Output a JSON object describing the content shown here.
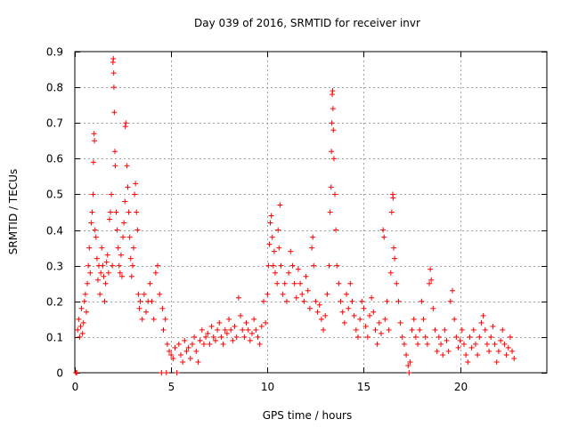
{
  "chart_data": {
    "type": "scatter",
    "title": "Day 039 of 2016, SRMTID for receiver invr",
    "xlabel": "GPS time / hours",
    "ylabel": "SRMTID / TECUs",
    "xlim": [
      0,
      24.5
    ],
    "ylim": [
      0,
      0.9
    ],
    "xticks": [
      0,
      5,
      10,
      15,
      20
    ],
    "yticks": [
      0,
      0.1,
      0.2,
      0.3,
      0.4,
      0.5,
      0.6,
      0.7,
      0.8,
      0.9
    ],
    "grid": true,
    "marker": "+",
    "color": "#ff0000",
    "series": [
      {
        "name": "SRMTID",
        "points": [
          [
            0.05,
            0.0
          ],
          [
            0.1,
            0.0
          ],
          [
            0.15,
            0.12
          ],
          [
            0.2,
            0.15
          ],
          [
            0.25,
            0.1
          ],
          [
            0.3,
            0.13
          ],
          [
            0.35,
            0.18
          ],
          [
            0.4,
            0.11
          ],
          [
            0.45,
            0.14
          ],
          [
            0.5,
            0.2
          ],
          [
            0.55,
            0.22
          ],
          [
            0.6,
            0.17
          ],
          [
            0.65,
            0.25
          ],
          [
            0.7,
            0.3
          ],
          [
            0.75,
            0.35
          ],
          [
            0.8,
            0.28
          ],
          [
            0.85,
            0.42
          ],
          [
            0.9,
            0.45
          ],
          [
            0.95,
            0.5
          ],
          [
            0.97,
            0.59
          ],
          [
            1.0,
            0.67
          ],
          [
            1.02,
            0.65
          ],
          [
            1.05,
            0.4
          ],
          [
            1.1,
            0.38
          ],
          [
            1.15,
            0.32
          ],
          [
            1.2,
            0.26
          ],
          [
            1.25,
            0.3
          ],
          [
            1.3,
            0.22
          ],
          [
            1.35,
            0.28
          ],
          [
            1.4,
            0.35
          ],
          [
            1.45,
            0.3
          ],
          [
            1.5,
            0.27
          ],
          [
            1.55,
            0.2
          ],
          [
            1.6,
            0.25
          ],
          [
            1.65,
            0.31
          ],
          [
            1.7,
            0.33
          ],
          [
            1.75,
            0.28
          ],
          [
            1.8,
            0.43
          ],
          [
            1.85,
            0.45
          ],
          [
            1.9,
            0.5
          ],
          [
            1.95,
            0.3
          ],
          [
            1.98,
            0.87
          ],
          [
            2.0,
            0.88
          ],
          [
            2.02,
            0.84
          ],
          [
            2.03,
            0.8
          ],
          [
            2.05,
            0.73
          ],
          [
            2.08,
            0.62
          ],
          [
            2.1,
            0.58
          ],
          [
            2.15,
            0.45
          ],
          [
            2.2,
            0.4
          ],
          [
            2.25,
            0.35
          ],
          [
            2.3,
            0.3
          ],
          [
            2.35,
            0.28
          ],
          [
            2.4,
            0.33
          ],
          [
            2.45,
            0.27
          ],
          [
            2.5,
            0.38
          ],
          [
            2.55,
            0.42
          ],
          [
            2.6,
            0.48
          ],
          [
            2.62,
            0.69
          ],
          [
            2.65,
            0.7
          ],
          [
            2.7,
            0.58
          ],
          [
            2.75,
            0.52
          ],
          [
            2.8,
            0.45
          ],
          [
            2.85,
            0.38
          ],
          [
            2.9,
            0.32
          ],
          [
            2.95,
            0.27
          ],
          [
            3.0,
            0.3
          ],
          [
            3.05,
            0.35
          ],
          [
            3.1,
            0.5
          ],
          [
            3.15,
            0.53
          ],
          [
            3.2,
            0.45
          ],
          [
            3.25,
            0.4
          ],
          [
            3.3,
            0.22
          ],
          [
            3.35,
            0.18
          ],
          [
            3.4,
            0.2
          ],
          [
            3.5,
            0.15
          ],
          [
            3.6,
            0.22
          ],
          [
            3.7,
            0.17
          ],
          [
            3.8,
            0.2
          ],
          [
            3.9,
            0.25
          ],
          [
            4.0,
            0.2
          ],
          [
            4.1,
            0.15
          ],
          [
            4.2,
            0.28
          ],
          [
            4.3,
            0.3
          ],
          [
            4.4,
            0.22
          ],
          [
            4.5,
            0.0
          ],
          [
            4.55,
            0.18
          ],
          [
            4.6,
            0.12
          ],
          [
            4.7,
            0.15
          ],
          [
            4.75,
            0.0
          ],
          [
            4.8,
            0.08
          ],
          [
            4.9,
            0.06
          ],
          [
            5.0,
            0.05
          ],
          [
            5.1,
            0.04
          ],
          [
            5.2,
            0.07
          ],
          [
            5.3,
            0.0
          ],
          [
            5.4,
            0.08
          ],
          [
            5.5,
            0.05
          ],
          [
            5.6,
            0.03
          ],
          [
            5.7,
            0.09
          ],
          [
            5.8,
            0.06
          ],
          [
            5.9,
            0.07
          ],
          [
            6.0,
            0.04
          ],
          [
            6.1,
            0.08
          ],
          [
            6.2,
            0.1
          ],
          [
            6.3,
            0.06
          ],
          [
            6.4,
            0.03
          ],
          [
            6.5,
            0.09
          ],
          [
            6.6,
            0.12
          ],
          [
            6.7,
            0.08
          ],
          [
            6.8,
            0.1
          ],
          [
            6.9,
            0.11
          ],
          [
            7.0,
            0.08
          ],
          [
            7.1,
            0.13
          ],
          [
            7.2,
            0.1
          ],
          [
            7.3,
            0.09
          ],
          [
            7.4,
            0.12
          ],
          [
            7.5,
            0.14
          ],
          [
            7.6,
            0.1
          ],
          [
            7.7,
            0.08
          ],
          [
            7.8,
            0.12
          ],
          [
            7.9,
            0.11
          ],
          [
            8.0,
            0.15
          ],
          [
            8.1,
            0.12
          ],
          [
            8.2,
            0.09
          ],
          [
            8.3,
            0.13
          ],
          [
            8.4,
            0.1
          ],
          [
            8.5,
            0.21
          ],
          [
            8.6,
            0.16
          ],
          [
            8.7,
            0.12
          ],
          [
            8.8,
            0.1
          ],
          [
            8.9,
            0.14
          ],
          [
            9.0,
            0.12
          ],
          [
            9.1,
            0.09
          ],
          [
            9.2,
            0.11
          ],
          [
            9.3,
            0.15
          ],
          [
            9.4,
            0.12
          ],
          [
            9.5,
            0.1
          ],
          [
            9.6,
            0.08
          ],
          [
            9.7,
            0.13
          ],
          [
            9.8,
            0.2
          ],
          [
            9.9,
            0.14
          ],
          [
            10.0,
            0.22
          ],
          [
            10.05,
            0.3
          ],
          [
            10.1,
            0.36
          ],
          [
            10.15,
            0.42
          ],
          [
            10.2,
            0.44
          ],
          [
            10.25,
            0.38
          ],
          [
            10.3,
            0.3
          ],
          [
            10.35,
            0.34
          ],
          [
            10.4,
            0.28
          ],
          [
            10.5,
            0.25
          ],
          [
            10.55,
            0.4
          ],
          [
            10.6,
            0.35
          ],
          [
            10.65,
            0.47
          ],
          [
            10.7,
            0.3
          ],
          [
            10.8,
            0.22
          ],
          [
            10.9,
            0.25
          ],
          [
            11.0,
            0.2
          ],
          [
            11.1,
            0.28
          ],
          [
            11.2,
            0.34
          ],
          [
            11.3,
            0.3
          ],
          [
            11.4,
            0.25
          ],
          [
            11.5,
            0.21
          ],
          [
            11.6,
            0.29
          ],
          [
            11.7,
            0.25
          ],
          [
            11.8,
            0.22
          ],
          [
            11.9,
            0.2
          ],
          [
            12.0,
            0.27
          ],
          [
            12.1,
            0.23
          ],
          [
            12.2,
            0.18
          ],
          [
            12.3,
            0.35
          ],
          [
            12.35,
            0.38
          ],
          [
            12.4,
            0.3
          ],
          [
            12.5,
            0.2
          ],
          [
            12.6,
            0.17
          ],
          [
            12.7,
            0.19
          ],
          [
            12.8,
            0.15
          ],
          [
            12.9,
            0.12
          ],
          [
            13.0,
            0.16
          ],
          [
            13.1,
            0.22
          ],
          [
            13.2,
            0.3
          ],
          [
            13.25,
            0.45
          ],
          [
            13.3,
            0.52
          ],
          [
            13.32,
            0.62
          ],
          [
            13.34,
            0.7
          ],
          [
            13.36,
            0.78
          ],
          [
            13.38,
            0.79
          ],
          [
            13.4,
            0.74
          ],
          [
            13.42,
            0.68
          ],
          [
            13.45,
            0.6
          ],
          [
            13.5,
            0.5
          ],
          [
            13.55,
            0.4
          ],
          [
            13.6,
            0.3
          ],
          [
            13.7,
            0.25
          ],
          [
            13.8,
            0.2
          ],
          [
            13.9,
            0.17
          ],
          [
            14.0,
            0.14
          ],
          [
            14.1,
            0.22
          ],
          [
            14.2,
            0.18
          ],
          [
            14.3,
            0.25
          ],
          [
            14.4,
            0.2
          ],
          [
            14.5,
            0.16
          ],
          [
            14.6,
            0.12
          ],
          [
            14.7,
            0.1
          ],
          [
            14.8,
            0.15
          ],
          [
            14.9,
            0.2
          ],
          [
            15.0,
            0.18
          ],
          [
            15.1,
            0.13
          ],
          [
            15.2,
            0.1
          ],
          [
            15.3,
            0.16
          ],
          [
            15.4,
            0.21
          ],
          [
            15.5,
            0.17
          ],
          [
            15.6,
            0.12
          ],
          [
            15.7,
            0.08
          ],
          [
            15.8,
            0.14
          ],
          [
            15.9,
            0.11
          ],
          [
            16.0,
            0.4
          ],
          [
            16.05,
            0.38
          ],
          [
            16.1,
            0.15
          ],
          [
            16.2,
            0.2
          ],
          [
            16.3,
            0.12
          ],
          [
            16.4,
            0.28
          ],
          [
            16.45,
            0.45
          ],
          [
            16.5,
            0.5
          ],
          [
            16.52,
            0.49
          ],
          [
            16.55,
            0.35
          ],
          [
            16.6,
            0.32
          ],
          [
            16.7,
            0.25
          ],
          [
            16.8,
            0.2
          ],
          [
            16.9,
            0.14
          ],
          [
            17.0,
            0.1
          ],
          [
            17.1,
            0.08
          ],
          [
            17.2,
            0.05
          ],
          [
            17.3,
            0.02
          ],
          [
            17.35,
            0.0
          ],
          [
            17.4,
            0.03
          ],
          [
            17.5,
            0.12
          ],
          [
            17.6,
            0.15
          ],
          [
            17.7,
            0.1
          ],
          [
            17.8,
            0.08
          ],
          [
            17.9,
            0.12
          ],
          [
            18.0,
            0.2
          ],
          [
            18.1,
            0.15
          ],
          [
            18.2,
            0.1
          ],
          [
            18.3,
            0.08
          ],
          [
            18.4,
            0.25
          ],
          [
            18.45,
            0.29
          ],
          [
            18.5,
            0.26
          ],
          [
            18.6,
            0.18
          ],
          [
            18.7,
            0.12
          ],
          [
            18.8,
            0.06
          ],
          [
            18.9,
            0.1
          ],
          [
            19.0,
            0.08
          ],
          [
            19.1,
            0.05
          ],
          [
            19.2,
            0.12
          ],
          [
            19.3,
            0.09
          ],
          [
            19.4,
            0.06
          ],
          [
            19.5,
            0.2
          ],
          [
            19.6,
            0.23
          ],
          [
            19.7,
            0.15
          ],
          [
            19.8,
            0.1
          ],
          [
            19.9,
            0.07
          ],
          [
            20.0,
            0.09
          ],
          [
            20.1,
            0.12
          ],
          [
            20.2,
            0.08
          ],
          [
            20.3,
            0.05
          ],
          [
            20.4,
            0.03
          ],
          [
            20.5,
            0.1
          ],
          [
            20.6,
            0.07
          ],
          [
            20.7,
            0.12
          ],
          [
            20.8,
            0.08
          ],
          [
            20.9,
            0.05
          ],
          [
            21.0,
            0.1
          ],
          [
            21.1,
            0.14
          ],
          [
            21.2,
            0.16
          ],
          [
            21.3,
            0.12
          ],
          [
            21.4,
            0.08
          ],
          [
            21.5,
            0.06
          ],
          [
            21.6,
            0.1
          ],
          [
            21.7,
            0.13
          ],
          [
            21.8,
            0.08
          ],
          [
            21.9,
            0.03
          ],
          [
            22.0,
            0.06
          ],
          [
            22.1,
            0.09
          ],
          [
            22.2,
            0.12
          ],
          [
            22.3,
            0.08
          ],
          [
            22.4,
            0.05
          ],
          [
            22.5,
            0.07
          ],
          [
            22.6,
            0.1
          ],
          [
            22.7,
            0.06
          ],
          [
            22.8,
            0.04
          ]
        ]
      }
    ]
  }
}
